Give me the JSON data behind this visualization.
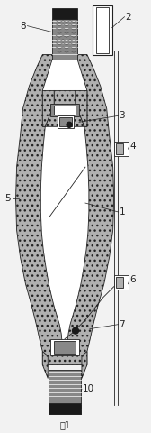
{
  "bg_color": "#f2f2f2",
  "line_color": "#222222",
  "figsize": [
    1.68,
    4.8
  ],
  "dpi": 100,
  "title": "图1",
  "hatch_color": "#888888",
  "gray_fill": "#b0b0b0",
  "white_fill": "#ffffff",
  "dark_fill": "#1a1a1a",
  "mid_gray": "#888888"
}
